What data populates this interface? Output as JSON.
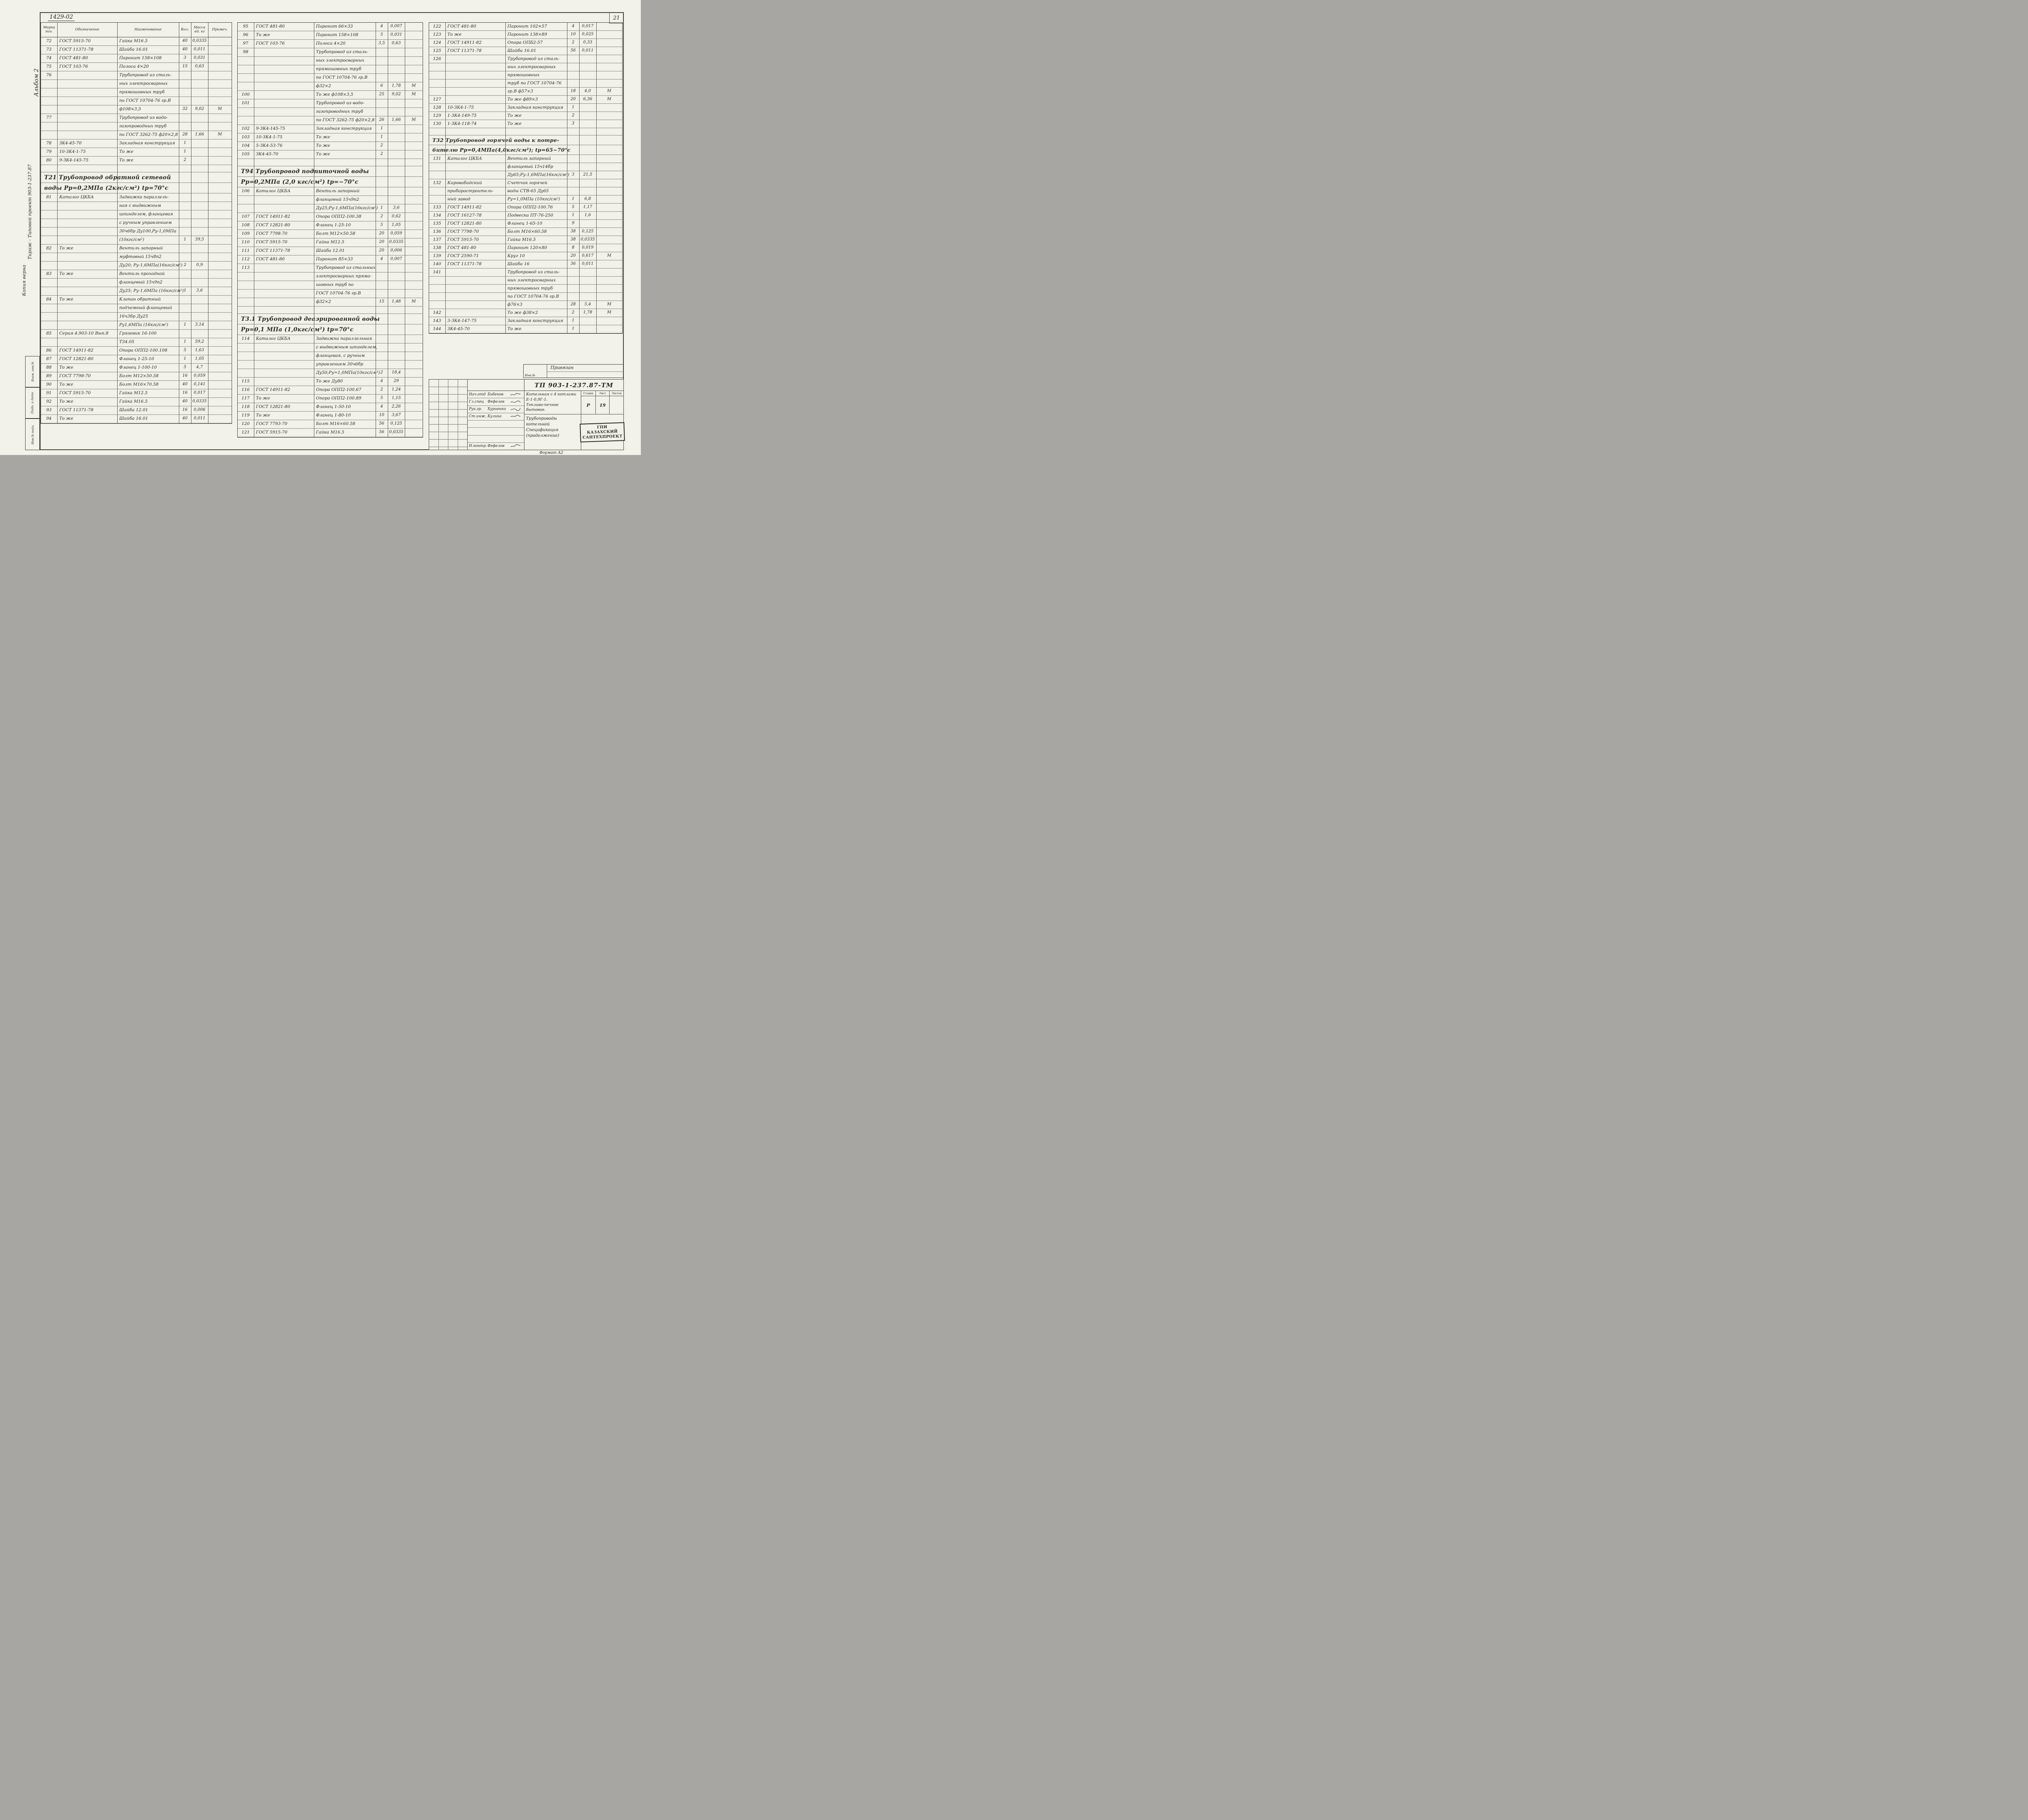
{
  "page": {
    "sheet_number": "21",
    "top_code": "1429-02",
    "format_note": "Формат А2"
  },
  "header": {
    "pos1": "Марка",
    "pos2": "поз.",
    "designation": "Обозначение",
    "name": "Наименование",
    "qty": "Кол.",
    "mass1": "Масса",
    "mass2": "ед. кг",
    "note": "Примеч."
  },
  "margin": {
    "album": "Альбом 2",
    "copy_line": "Копия верна",
    "tirazh_line": "Тираж - Типовой проект 903-1-237.87",
    "stamp_top": "Взам. инв.№",
    "stamp_mid": "Подп. и дата",
    "stamp_bot": "Инв.№ подл."
  },
  "columns": [
    {
      "lines": [
        {
          "p": "72",
          "d": "ГОСТ 5915-70",
          "n": "Гайка М16.5",
          "q": "40",
          "m": "0,0335"
        },
        {
          "p": "73",
          "d": "ГОСТ 11371-78",
          "n": "Шайба 16.01",
          "q": "40",
          "m": "0,011"
        },
        {
          "p": "74",
          "d": "ГОСТ 481-80",
          "n": "Паронит 158×108",
          "q": "3",
          "m": "0,031"
        },
        {
          "p": "75",
          "d": "ГОСТ 103-76",
          "n": "Полоса 4×20",
          "q": "15",
          "m": "0,63"
        },
        {
          "p": "76",
          "n": "Трубопровод из сталь-"
        },
        {
          "n": "ных электросварных"
        },
        {
          "n": "прямошовных труб"
        },
        {
          "n": "по ГОСТ 10704-76 гр.В"
        },
        {
          "n": "ф108×3,5",
          "q": "32",
          "m": "9,02",
          "o": "М"
        },
        {
          "p": "77",
          "n": "Трубопровод из водо-"
        },
        {
          "n": "газопроводных труб"
        },
        {
          "n": "по ГОСТ 3262-75 ф20×2,8",
          "q": "28",
          "m": "1,66",
          "o": "М"
        },
        {
          "p": "78",
          "d": "ЗК4-45-70",
          "n": "Закладная конструкция",
          "q": "1"
        },
        {
          "p": "79",
          "d": "10-ЗК4-1-75",
          "n": "То же",
          "q": "1"
        },
        {
          "p": "80",
          "d": "9-ЗК4-145-75",
          "n": "То же",
          "q": "2"
        },
        {
          "b": 1
        },
        {
          "s": "Т21 Трубопровод обратной сетевой"
        },
        {
          "s": "воды Рр=0,2МПа (2кгс/см²) tр=70°с"
        },
        {
          "p": "81",
          "d": "Каталог ЦКБА",
          "n": "Задвижка параллель-"
        },
        {
          "n": "ная с выдвижным"
        },
        {
          "n": "шпинделем, фланцевая"
        },
        {
          "n": "с ручным управлением"
        },
        {
          "n": "30ч6бр Ду100,Ру-1,0МПа"
        },
        {
          "n": "(10кгс/см²)",
          "q": "1",
          "m": "39,5"
        },
        {
          "p": "82",
          "d": "То же",
          "n": "Вентиль запорный"
        },
        {
          "n": "муфтовый 15ч8п2"
        },
        {
          "n": "Ду20; Ру-1,6МПа(16кгс/см²)",
          "q": "2",
          "m": "0,9"
        },
        {
          "p": "83",
          "d": "То же",
          "n": "Вентиль проходной"
        },
        {
          "n": "фланцевый 15ч9п2"
        },
        {
          "n": "Ду25; Ру-1,6МПа (16кгс/см²)",
          "q": "1",
          "m": "3,6"
        },
        {
          "p": "84",
          "d": "То же",
          "n": "Клапан обратный"
        },
        {
          "n": "подъемный фланцевый"
        },
        {
          "n": "16ч3бр Ду25"
        },
        {
          "n": "Ру1,6МПа (16кгс/см²)",
          "q": "1",
          "m": "3,14"
        },
        {
          "p": "85",
          "d": "Серия 4.903-10 Вып.8",
          "n": "Грязевик 16-100"
        },
        {
          "n": "Т34.05",
          "q": "1",
          "m": "59,2"
        },
        {
          "p": "86",
          "d": "ГОСТ 14911-82",
          "n": "Опора ОПП2-100.108",
          "q": "5",
          "m": "1,63"
        },
        {
          "p": "87",
          "d": "ГОСТ 12821-80",
          "n": "Фланец 1-25-10",
          "q": "1",
          "m": "1,05"
        },
        {
          "p": "88",
          "d": "То же",
          "n": "Фланец 1-100-10",
          "q": "5",
          "m": "4,7"
        },
        {
          "p": "89",
          "d": "ГОСТ 7798-70",
          "n": "Болт М12×50.58",
          "q": "16",
          "m": "0,059"
        },
        {
          "p": "90",
          "d": "То же",
          "n": "Болт М16×70.58",
          "q": "40",
          "m": "0,141"
        },
        {
          "p": "91",
          "d": "ГОСТ 5915-70",
          "n": "Гайка М12.5",
          "q": "16",
          "m": "0,017"
        },
        {
          "p": "92",
          "d": "То же",
          "n": "Гайка М16.5",
          "q": "40",
          "m": "0,0335"
        },
        {
          "p": "93",
          "d": "ГОСТ 11371-78",
          "n": "Шайба 12.01",
          "q": "16",
          "m": "0,006"
        },
        {
          "p": "94",
          "d": "То же",
          "n": "Шайба 16.01",
          "q": "40",
          "m": "0,011"
        }
      ]
    },
    {
      "lines": [
        {
          "p": "95",
          "d": "ГОСТ 481-80",
          "n": "Паронит 66×33",
          "q": "4",
          "m": "0,007"
        },
        {
          "p": "96",
          "d": "То же",
          "n": "Паронит 158×108",
          "q": "5",
          "m": "0,031"
        },
        {
          "p": "97",
          "d": "ГОСТ 103-76",
          "n": "Полоса 4×20",
          "q": "3,5",
          "m": "0,63"
        },
        {
          "p": "98",
          "n": "Трубопровод из сталь-"
        },
        {
          "n": "ных электросварных"
        },
        {
          "n": "прямошовных труб"
        },
        {
          "n": "по ГОСТ 10704-76 гр.В"
        },
        {
          "n": "ф32×2",
          "q": "6",
          "m": "1,78",
          "o": "М"
        },
        {
          "p": "100",
          "n": "То же  ф108×3,5",
          "q": "25",
          "m": "9,02",
          "o": "М"
        },
        {
          "p": "101",
          "n": "Трубопровод из водо-"
        },
        {
          "n": "газопроводных труб"
        },
        {
          "n": "по ГОСТ 3262-75 ф20×2,8",
          "q": "26",
          "m": "1,66",
          "o": "М"
        },
        {
          "p": "102",
          "d": "9-ЗК4-145-75",
          "n": "Закладная конструкция",
          "q": "1"
        },
        {
          "p": "103",
          "d": "10-ЗК4-1-75",
          "n": "То же",
          "q": "1"
        },
        {
          "p": "104",
          "d": "5-ЗК4-53-76",
          "n": "То же",
          "q": "2"
        },
        {
          "p": "105",
          "d": "ЗК4-45-70",
          "n": "То же",
          "q": "2"
        },
        {
          "b": 1
        },
        {
          "s": "Т94 Трубопровод подпиточной воды"
        },
        {
          "s": "Рр=0,2МПа (2,0 кгс/см²) tр=~70°с"
        },
        {
          "p": "106",
          "d": "Каталог ЦКБА",
          "n": "Вентиль запорный"
        },
        {
          "n": "фланцевый 15ч9п2"
        },
        {
          "n": "Ду25;Ру-1,6МПа(16кгс/см²)",
          "q": "1",
          "m": "3,6"
        },
        {
          "p": "107",
          "d": "ГОСТ 14911-82",
          "n": "Опора ОПП2-100.38",
          "q": "2",
          "m": "0,62"
        },
        {
          "p": "108",
          "d": "ГОСТ 12821-80",
          "n": "Фланец 1-25-10",
          "q": "5",
          "m": "1,05"
        },
        {
          "p": "109",
          "d": "ГОСТ 7798-70",
          "n": "Болт М12×50.58",
          "q": "20",
          "m": "0,059"
        },
        {
          "p": "110",
          "d": "ГОСТ 5915-70",
          "n": "Гайка М12.5",
          "q": "20",
          "m": "0,0335"
        },
        {
          "p": "111",
          "d": "ГОСТ 11371-78",
          "n": "Шайба 12.01",
          "q": "20",
          "m": "0,006"
        },
        {
          "p": "112",
          "d": "ГОСТ 481-80",
          "n": "Паронит 85×33",
          "q": "4",
          "m": "0,007"
        },
        {
          "p": "113",
          "n": "Трубопровод из стальных"
        },
        {
          "n": "электросварных прямо-"
        },
        {
          "n": "шовных труб по"
        },
        {
          "n": "ГОСТ 10704-76 гр.В"
        },
        {
          "n": "ф32×2",
          "q": "15",
          "m": "1,48",
          "o": "М"
        },
        {
          "b": 1
        },
        {
          "s": "Т3.1 Трубопровод деаэрированной воды"
        },
        {
          "s": "Рр=0,1 МПа (1,0кгс/см²) tр=70°с"
        },
        {
          "p": "114",
          "d": "Каталог ЦКБА",
          "n": "Задвижка параллельная"
        },
        {
          "n": "с выдвижным шпинделем,"
        },
        {
          "n": "фланцевая, с ручным"
        },
        {
          "n": "управлением 30ч6бр"
        },
        {
          "n": "Ду50;Ру=1,0МПа(10кгс/см²)",
          "q": "2",
          "m": "18,4"
        },
        {
          "p": "115",
          "n": "То же  Ду80",
          "q": "4",
          "m": "29"
        },
        {
          "p": "116",
          "d": "ГОСТ 14911-82",
          "n": "Опора ОПП2-100.67",
          "q": "2",
          "m": "1,24"
        },
        {
          "p": "117",
          "d": "То же",
          "n": "Опора ОПП2-100.89",
          "q": "5",
          "m": "1,15"
        },
        {
          "p": "118",
          "d": "ГОСТ 12821-80",
          "n": "Фланец 1-50-10",
          "q": "4",
          "m": "2,26"
        },
        {
          "p": "119",
          "d": "То же",
          "n": "Фланец 1-80-10",
          "q": "10",
          "m": "3,67"
        },
        {
          "p": "120",
          "d": "ГОСТ 7793-70",
          "n": "Болт М16×60.58",
          "q": "56",
          "m": "0,125"
        },
        {
          "p": "121",
          "d": "ГОСТ 5915-70",
          "n": "Гайка М16.5",
          "q": "56",
          "m": "0,0335"
        }
      ]
    },
    {
      "lines": [
        {
          "p": "122",
          "d": "ГОСТ 481-80",
          "n": "Паронит 102×57",
          "q": "4",
          "m": "0,017"
        },
        {
          "p": "123",
          "d": "То же",
          "n": "Паронит 138×89",
          "q": "10",
          "m": "0,025"
        },
        {
          "p": "124",
          "d": "ГОСТ 14911-82",
          "n": "Опора ОПБ2-57",
          "q": "2",
          "m": "0,33"
        },
        {
          "p": "125",
          "d": "ГОСТ 11371-78",
          "n": "Шайба 16.01",
          "q": "56",
          "m": "0,011"
        },
        {
          "p": "126",
          "n": "Трубопровод из сталь-"
        },
        {
          "n": "ных электросварных"
        },
        {
          "n": "прямошовных"
        },
        {
          "n": "труб по ГОСТ 10704-76"
        },
        {
          "n": "гр.В   ф57×3",
          "q": "18",
          "m": "4,0",
          "o": "М"
        },
        {
          "p": "127",
          "n": "То же  ф89×3",
          "q": "20",
          "m": "6,36",
          "o": "М"
        },
        {
          "p": "128",
          "d": "10-ЗК4-1-75",
          "n": "Закладная конструкция",
          "q": "1"
        },
        {
          "p": "129",
          "d": "1-ЗК4-149-75",
          "n": "То же",
          "q": "2"
        },
        {
          "p": "130",
          "d": "1-ЗК4-118-74",
          "n": "То же",
          "q": "3"
        },
        {
          "b": 1
        },
        {
          "s": "Т32 Трубопровод горячей воды к потре-"
        },
        {
          "s": "бителю Рр=0,4МПа(4,0кгс/см²); tр=65~70°с"
        },
        {
          "p": "131",
          "d": "Каталог ЦКБА",
          "n": "Вентиль запорный"
        },
        {
          "n": "фланцевый 15ч14бр"
        },
        {
          "n": "Ду65;Ру-1,6МПа(16кгс/см²)",
          "q": "3",
          "m": "21,5"
        },
        {
          "p": "132",
          "d": "Кировабадский",
          "n": "Счетчик горячей"
        },
        {
          "d": "приборостроитель-",
          "n": "воды СТВ-65 Ду65"
        },
        {
          "d": "ный  завод",
          "n": "Ру=1,0МПа (10кгс/см²)",
          "q": "1",
          "m": "6,8"
        },
        {
          "p": "133",
          "d": "ГОСТ 14911-82",
          "n": "Опора ОПП2-100.76",
          "q": "5",
          "m": "1,17"
        },
        {
          "p": "134",
          "d": "ГОСТ 16127-78",
          "n": "Подвеска ПТ-76-250",
          "q": "1",
          "m": "1,6"
        },
        {
          "p": "135",
          "d": "ГОСТ 12821-80",
          "n": "Фланец 1-65-10",
          "q": "9",
          "m": ""
        },
        {
          "p": "136",
          "d": "ГОСТ 7798-70",
          "n": "Болт М16×60.58",
          "q": "38",
          "m": "0,125"
        },
        {
          "p": "137",
          "d": "ГОСТ 5915-70",
          "n": "Гайка М16.5",
          "q": "38",
          "m": "0,0335"
        },
        {
          "p": "138",
          "d": "ГОСТ 481-80",
          "n": "Паронит 120×80",
          "q": "8",
          "m": "0,019"
        },
        {
          "p": "139",
          "d": "ГОСТ 2590-71",
          "n": "Круг 10",
          "q": "20",
          "m": "0,617",
          "o": "М"
        },
        {
          "p": "140",
          "d": "ГОСТ 11371-78",
          "n": "Шайба 16",
          "q": "36",
          "m": "0,011"
        },
        {
          "p": "141",
          "n": "Трубопровод из сталь-"
        },
        {
          "n": "ных электросварных"
        },
        {
          "n": "прямошовных труб"
        },
        {
          "n": "по ГОСТ 10704-76 гр.В"
        },
        {
          "n": "ф76×3",
          "q": "28",
          "m": "5,4",
          "o": "М"
        },
        {
          "p": "142",
          "n": "То же  ф38×2",
          "q": "2",
          "m": "1,78",
          "o": "М"
        },
        {
          "p": "143",
          "d": "3-ЗК4-147-75",
          "n": "Закладная конструкция",
          "q": "1"
        },
        {
          "p": "144",
          "d": "ЗК4-45-70",
          "n": "То же",
          "q": "1"
        }
      ]
    }
  ],
  "title_block": {
    "privyazan": "Привязан",
    "inv_label": "Инв.№",
    "doc_number": "ТП 903-1-237.87-ТМ",
    "signatures": [
      {
        "role": "Нач.отд",
        "name": "Бибеков"
      },
      {
        "role": "Гл.спец",
        "name": "Фефелов"
      },
      {
        "role": "Рук.гр.",
        "name": "Хуриенко"
      },
      {
        "role": "Ст.инж.",
        "name": "Кулика"
      },
      {
        "role": "Н.контр.",
        "name": "Фефелов"
      }
    ],
    "project_line1": "Котельная с 4 котлами",
    "project_line2": "Е-1-0,9Г-1.",
    "project_line3": "Топливо-печное бытовое.",
    "subject_line1": "Трубопроводы котельной",
    "subject_line2": "Спецификация",
    "subject_line3": "(продолжение)",
    "stage_label": "Стадия",
    "sheet_label": "Лист",
    "sheets_label": "Листов",
    "stage": "Р",
    "sheet": "19",
    "sheets": "",
    "org_line1": "ГПИ КАЗАХСКИЙ",
    "org_line2": "САНТЕХПРОЕКТ"
  }
}
